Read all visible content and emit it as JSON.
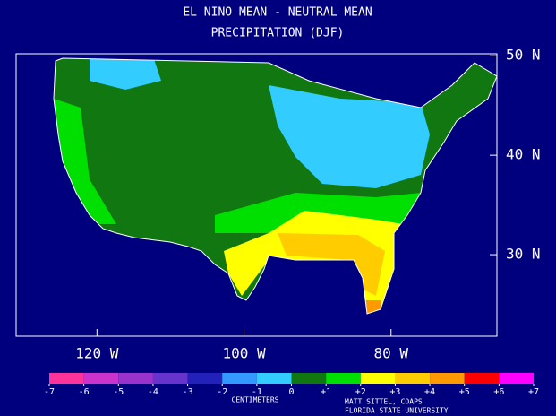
{
  "title": "EL NINO MEAN - NEUTRAL MEAN",
  "subtitle": "PRECIPITATION (DJF)",
  "map": {
    "xlim": [
      -131,
      -65.6
    ],
    "xticks": [
      {
        "value": -120,
        "label": "120 W"
      },
      {
        "value": -100,
        "label": "100 W"
      },
      {
        "value": -80,
        "label": "80 W"
      }
    ],
    "ylim": [
      21.8,
      50.2
    ],
    "yticks": [
      {
        "value": 30,
        "label": "30 N"
      },
      {
        "value": 40,
        "label": "40 N"
      },
      {
        "value": 50,
        "label": "50 N"
      }
    ]
  },
  "colorbar": {
    "label": "CENTIMETERS",
    "ticks": [
      {
        "value": -7,
        "label": "-7"
      },
      {
        "value": -6,
        "label": "-6"
      },
      {
        "value": -5,
        "label": "-5"
      },
      {
        "value": -4,
        "label": "-4"
      },
      {
        "value": -3,
        "label": "-3"
      },
      {
        "value": -2,
        "label": "-2"
      },
      {
        "value": -1,
        "label": "-1"
      },
      0,
      {
        "value": 1,
        "label": "+1"
      },
      {
        "value": 2,
        "label": "+2"
      },
      {
        "value": 3,
        "label": "+3"
      },
      {
        "value": 4,
        "label": "+4"
      },
      {
        "value": 5,
        "label": "+5"
      },
      {
        "value": 6,
        "label": "+6"
      },
      {
        "value": 7,
        "label": "+7"
      }
    ],
    "colors": [
      "#ff3399",
      "#cc33cc",
      "#9933cc",
      "#6633cc",
      "#2222bb",
      "#3399ff",
      "#33ccff",
      "#117711",
      "#00e000",
      "#ffff00",
      "#ffcc00",
      "#ff9900",
      "#ff0000",
      "#ff00ff"
    ]
  },
  "credits": [
    "MATT SITTEL, COAPS",
    "FLORIDA STATE UNIVERSITY"
  ]
}
